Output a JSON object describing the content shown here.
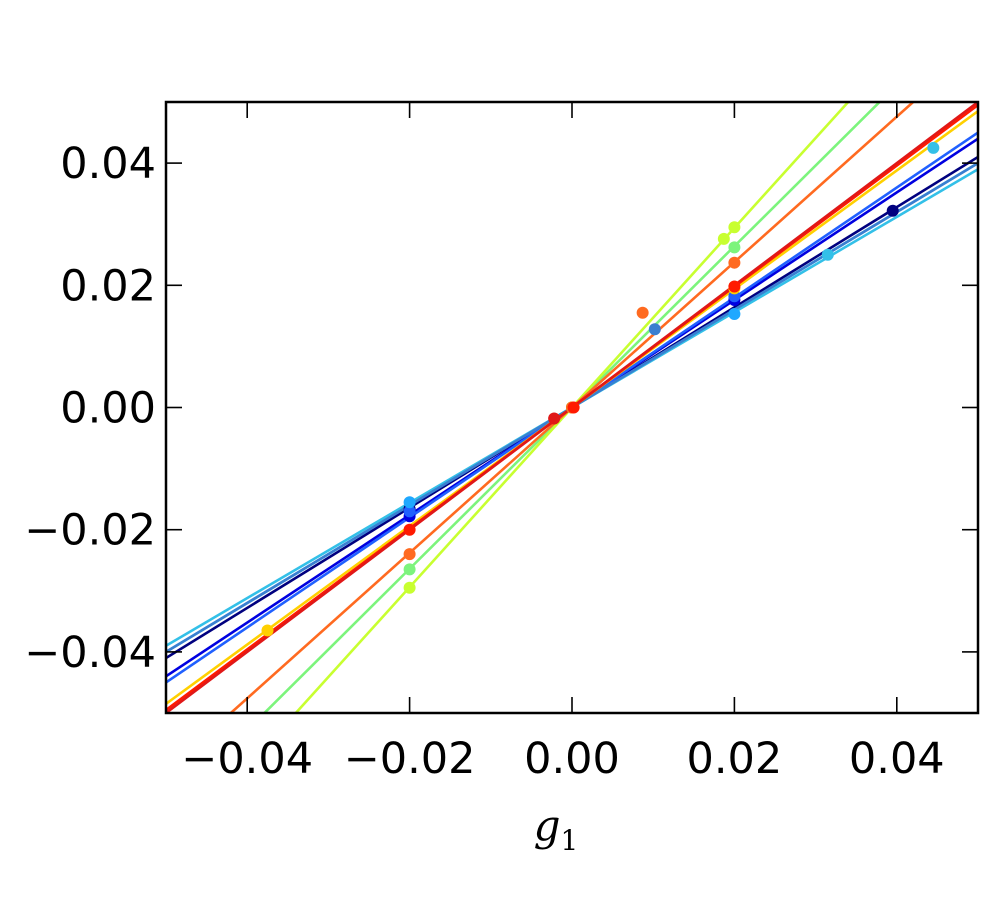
{
  "chart_data": {
    "type": "scatter",
    "xlabel": "g",
    "xlabel_subscript": "1",
    "ylabel": "",
    "xlim": [
      -0.05,
      0.05
    ],
    "ylim": [
      -0.05,
      0.05
    ],
    "x_ticks": [
      -0.04,
      -0.02,
      0.0,
      0.02,
      0.04
    ],
    "x_tick_labels": [
      "−0.04",
      "−0.02",
      "0.00",
      "0.02",
      "0.04"
    ],
    "y_ticks": [
      0.04,
      0.02,
      0.0,
      -0.02,
      -0.04
    ],
    "y_tick_labels": [
      "0.04",
      "0.02",
      "0.00",
      "−0.02",
      "−0.04"
    ],
    "grid": false,
    "series": [
      {
        "color": "#00007f",
        "slope": 0.82,
        "points": [
          [
            -0.02,
            -0.0166
          ],
          [
            0.0,
            0.0
          ],
          [
            0.0395,
            0.0322
          ]
        ]
      },
      {
        "color": "#0000e0",
        "slope": 0.88,
        "points": [
          [
            -0.02,
            -0.0178
          ],
          [
            0.02,
            0.0176
          ]
        ]
      },
      {
        "color": "#2060ff",
        "slope": 0.9,
        "points": [
          [
            -0.02,
            -0.017
          ],
          [
            0.0,
            0.0
          ],
          [
            0.02,
            0.0182
          ]
        ]
      },
      {
        "color": "#1fa8ff",
        "slope": 0.8,
        "points": [
          [
            -0.02,
            -0.0155
          ],
          [
            0.0,
            0.0
          ],
          [
            0.02,
            0.0153
          ]
        ]
      },
      {
        "color": "#33c0e8",
        "slope": 0.78,
        "points": [
          [
            0.0445,
            0.0425
          ],
          [
            0.0315,
            0.025
          ]
        ]
      },
      {
        "color": "#3a7fd0",
        "slope": 0.8,
        "points": [
          [
            0.0102,
            0.0128
          ]
        ]
      },
      {
        "color": "#7cf47c",
        "slope": 1.32,
        "points": [
          [
            -0.02,
            -0.0265
          ],
          [
            0.0,
            0.0
          ],
          [
            0.02,
            0.0262
          ]
        ]
      },
      {
        "color": "#c8ff30",
        "slope": 1.47,
        "points": [
          [
            -0.02,
            -0.0295
          ],
          [
            0.0,
            0.0
          ],
          [
            0.02,
            0.0295
          ],
          [
            0.0187,
            0.0276
          ]
        ]
      },
      {
        "color": "#ffd000",
        "slope": 0.97,
        "points": [
          [
            -0.0375,
            -0.0365
          ],
          [
            0.0,
            0.0
          ],
          [
            0.02,
            0.0195
          ]
        ]
      },
      {
        "color": "#ff6a20",
        "slope": 1.19,
        "points": [
          [
            -0.02,
            -0.024
          ],
          [
            0.0,
            0.0
          ],
          [
            0.02,
            0.0237
          ],
          [
            0.0087,
            0.0155
          ]
        ]
      },
      {
        "color": "#ff1a00",
        "slope": 0.99,
        "points": [
          [
            -0.02,
            -0.02
          ],
          [
            0.0002,
            0.0
          ],
          [
            0.02,
            0.0198
          ]
        ]
      },
      {
        "color": "#e01818",
        "slope": 1.0,
        "points": [
          [
            -0.0022,
            -0.0018
          ]
        ]
      }
    ]
  }
}
